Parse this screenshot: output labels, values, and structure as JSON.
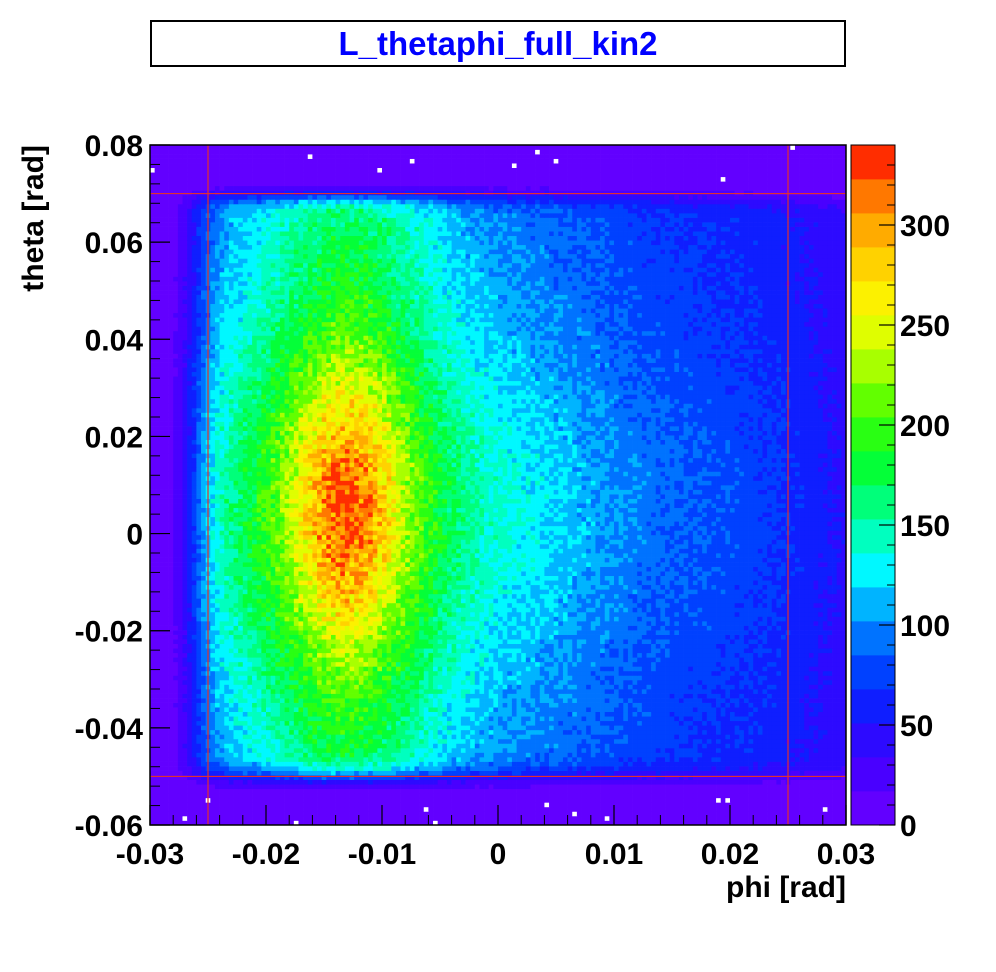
{
  "chart_data": {
    "type": "heatmap",
    "title": "L_thetaphi_full_kin2",
    "xlabel": "phi [rad]",
    "ylabel": "theta [rad]",
    "xlim": [
      -0.03,
      0.03
    ],
    "ylim": [
      -0.06,
      0.08
    ],
    "x_ticks": [
      "-0.03",
      "-0.02",
      "-0.01",
      "0",
      "0.01",
      "0.02",
      "0.03"
    ],
    "x_tick_values": [
      -0.03,
      -0.02,
      -0.01,
      0,
      0.01,
      0.02,
      0.03
    ],
    "y_ticks": [
      "-0.06",
      "-0.04",
      "-0.02",
      "0",
      "0.02",
      "0.04",
      "0.06",
      "0.08"
    ],
    "y_tick_values": [
      -0.06,
      -0.04,
      -0.02,
      0,
      0.02,
      0.04,
      0.06,
      0.08
    ],
    "colorbar": {
      "zlim": [
        0,
        340
      ],
      "ticks": [
        "0",
        "50",
        "100",
        "150",
        "200",
        "250",
        "300"
      ],
      "tick_values": [
        0,
        50,
        100,
        150,
        200,
        250,
        300
      ]
    },
    "density_peak": {
      "phi": -0.013,
      "theta": 0.005,
      "value": 320
    },
    "acceptance_region": {
      "phi": [
        -0.025,
        0.025
      ],
      "theta": [
        -0.05,
        0.07
      ]
    },
    "grid": true,
    "grid_color": "#e03030"
  }
}
